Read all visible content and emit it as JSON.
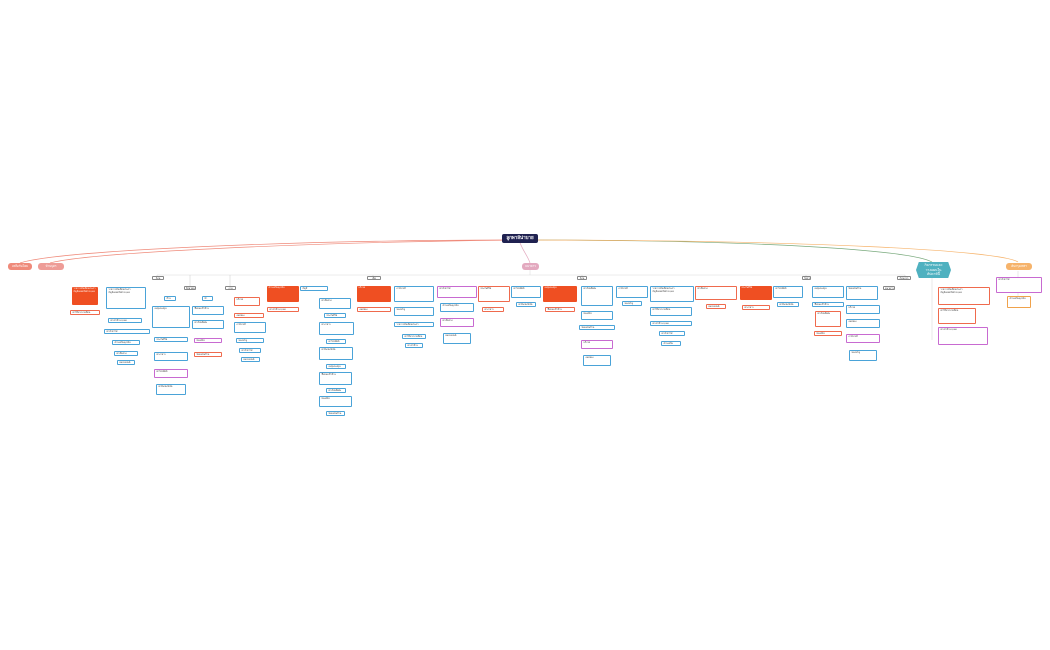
{
  "mindmap": {
    "root": "ลูกพาลีน่าบาย",
    "branch_1": "เหลือกันโดย",
    "branch_2": "บ้านบุตร",
    "branch_3": "ธนาคาร",
    "branch_4": "กิจกรรมและวางแผนในสัปดาห์นี้",
    "branch_5": "ต้นกรุงเทพฯ",
    "sections": [
      "ก้อนแรก",
      "สิงหาคม",
      "งานย้าย",
      "เช็ค",
      "ก้อนใหญ่",
      "กัลยาณ์"
    ],
    "topics": [
      "ก้อนแรก",
      "บ้านสวน",
      "ทำใหม่",
      "บัญชี",
      "ห้องน้ำ",
      "ธนาคาร"
    ],
    "items": [
      "รายการเงินเดือนประจำ\nบัญชีออมทรัพย์ 20,000",
      "ค่าใช้จ่ายรายเดือน",
      "ค่าเช่าบ้าน 8,000",
      "ค่าน้ำค่าไฟ",
      "สำรองเงินฉุกเฉิน",
      "ค่าเดินทาง",
      "ผ่อนรถยนต์",
      "ประกันชีวิต",
      "ค่าอาหาร",
      "ค่าโทรศัพท์",
      "ค่าอินเทอร์เน็ต",
      "ลงทุนกองทุน",
      "ซื้อของเข้าบ้าน",
      "ค่าเรียนพิเศษ",
      "ท่องเที่ยว",
      "ซ่อมแซมบ้าน",
      "บริจาค",
      "ออมทอง",
      "ภาษีรายปี",
      "ของขวัญ"
    ]
  },
  "colors": {
    "root": "#1f2150",
    "branch_left": "#ef8a7a",
    "branch_mid": "#e3a9bf",
    "branch_teal": "#4fb1c0",
    "branch_orange": "#f6b36b",
    "box_blue": "#4aa3d8",
    "box_pink": "#c86ad1",
    "box_red": "#ef4f22"
  }
}
